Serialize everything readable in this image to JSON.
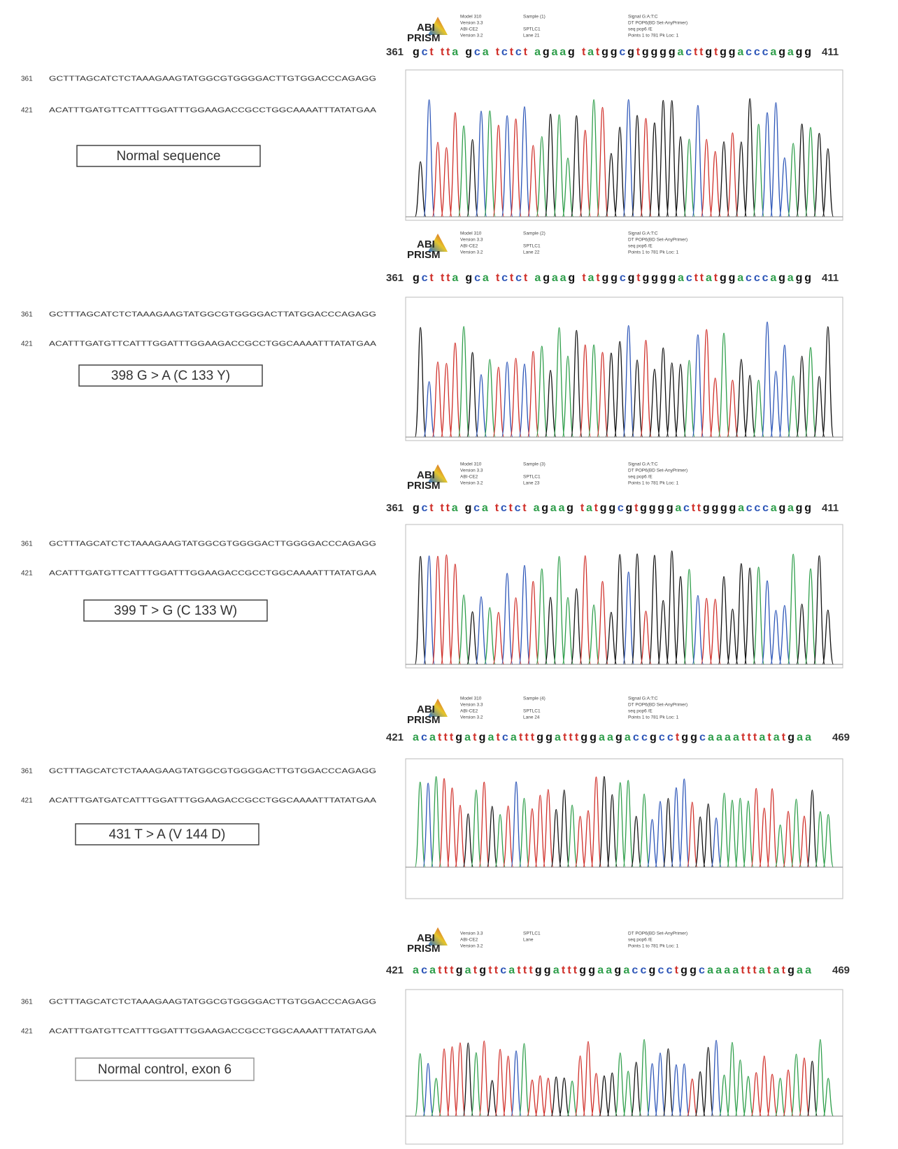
{
  "panels": [
    {
      "left": {
        "lines": [
          {
            "number": 361,
            "sequence": "GCTTTAGCATCTCTAAAGAAGTATGGCGTGGGGACTTGTGGACCCAGAGG"
          },
          {
            "number": 421,
            "sequence": "ACATTTGATGTTCATTTGGATTTGGAAGACCGCCTGGCAAAATTTATATGAA"
          }
        ],
        "label": "Normal sequence"
      },
      "right": {
        "logo": [
          "ABI",
          "PRISM"
        ],
        "info": [
          [
            "Model 310",
            "Version 3.3",
            "ABI-CE2",
            "Version 3.2"
          ],
          [
            "Sample (1)",
            "",
            "SPTLC1",
            "Lane 21"
          ],
          [
            "Signal G:A:T:C",
            "DT POP6(BD Set-AnyPrimer)",
            "seq pop6 /E",
            "Points 1 to 781 Pk Loc: 1"
          ]
        ],
        "start": 361,
        "bases": "gct tta gca tctct agaag tatggcgtggggacttgtggacccagagg",
        "end": 411
      }
    },
    {
      "left": {
        "lines": [
          {
            "number": 361,
            "sequence": "GCTTTAGCATCTCTAAAGAAGTATGGCGTGGGGACTTATGGACCCAGAGG"
          },
          {
            "number": 421,
            "sequence": "ACATTTGATGTTCATTTGGATTTGGAAGACCGCCTGGCAAAATTTATATGAA"
          }
        ],
        "label": "398 G > A (C 133 Y)"
      },
      "right": {
        "logo": [
          "ABI",
          "PRISM"
        ],
        "info": [
          [
            "Model 310",
            "Version 3.3",
            "ABI-CE2",
            "Version 3.2"
          ],
          [
            "Sample (2)",
            "",
            "SPTLC1",
            "Lane 22"
          ],
          [
            "Signal G:A:T:C",
            "DT POP6(BD Set-AnyPrimer)",
            "seq pop6 /E",
            "Points 1 to 781 Pk Loc: 1"
          ]
        ],
        "start": 361,
        "bases": "gct tta gca tctct agaag tatggcgtggggacttatggacccagagg",
        "end": 411
      }
    },
    {
      "left": {
        "lines": [
          {
            "number": 361,
            "sequence": "GCTTTAGCATCTCTAAAGAAGTATGGCGTGGGGACTTGGGGACCCAGAGG"
          },
          {
            "number": 421,
            "sequence": "ACATTTGATGTTCATTTGGATTTGGAAGACCGCCTGGCAAAATTTATATGAA"
          }
        ],
        "label": "399 T > G (C 133 W)"
      },
      "right": {
        "logo": [
          "ABI",
          "PRISM"
        ],
        "info": [
          [
            "Model 310",
            "Version 3.3",
            "ABI-CE2",
            "Version 3.2"
          ],
          [
            "Sample (3)",
            "",
            "SPTLC1",
            "Lane 23"
          ],
          [
            "Signal G:A:T:C",
            "DT POP6(BD Set-AnyPrimer)",
            "seq pop6 /E",
            "Points 1 to 781 Pk Loc: 1"
          ]
        ],
        "start": 361,
        "bases": "gct tta gca tctct agaag tatggcgtggggacttggggacccagagg",
        "end": 411
      }
    },
    {
      "left": {
        "lines": [
          {
            "number": 361,
            "sequence": "GCTTTAGCATCTCTAAAGAAGTATGGCGTGGGGACTTGTGGACCCAGAGG"
          },
          {
            "number": 421,
            "sequence": "ACATTTGATGATCATTTGGATTTGGAAGACCGCCTGGCAAAATTTATATGAA"
          }
        ],
        "label": "431 T > A (V 144 D)"
      },
      "right": {
        "logo": [
          "ABI",
          "PRISM"
        ],
        "info": [
          [
            "Model 310",
            "Version 3.3",
            "ABI-CE2",
            "Version 3.2"
          ],
          [
            "Sample (4)",
            "",
            "SPTLC1",
            "Lane 24"
          ],
          [
            "Signal G:A:T:C",
            "DT POP6(BD Set-AnyPrimer)",
            "seq pop6 /E",
            "Points 1 to 781 Pk Loc: 1"
          ]
        ],
        "start": 421,
        "bases": "acatttgatgatcatttggatttggaagaccgcctggcaaaatttatatgaa",
        "end": 469
      }
    },
    {
      "left": {
        "lines": [
          {
            "number": 361,
            "sequence": "GCTTTAGCATCTCTAAAGAAGTATGGCGTGGGGACTTGTGGACCCAGAGG"
          },
          {
            "number": 421,
            "sequence": "ACATTTGATGTTCATTTGGATTTGGAAGACCGCCTGGCAAAATTTATATGAA"
          }
        ],
        "label": "Normal control, exon 6"
      },
      "right": {
        "logo": [
          "ABI",
          "PRISM"
        ],
        "info": [
          [
            "Version 3.3",
            "ABI-CE2",
            "Version 3.2"
          ],
          [
            "SPTLC1",
            "Lane"
          ],
          [
            "DT POP6(BD Set-AnyPrimer)",
            "seq pop6 /E",
            "Points 1 to 781 Pk Loc: 1"
          ]
        ],
        "start": 421,
        "bases": "acatttgatgttcatttggatttggaagaccgcctggcaaaatttatatgaa",
        "end": 469
      }
    }
  ]
}
